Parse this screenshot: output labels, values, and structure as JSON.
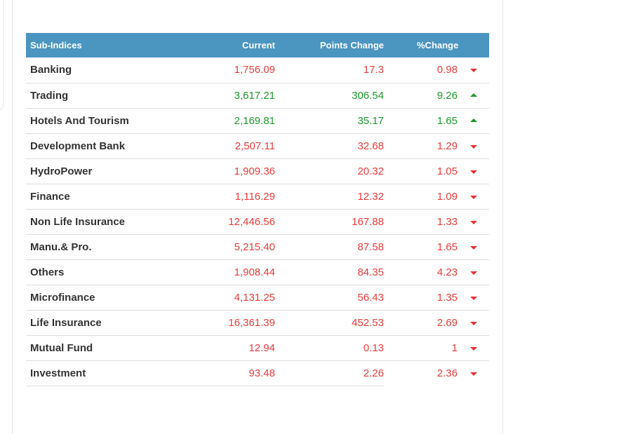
{
  "table": {
    "headers": {
      "name": "Sub-Indices",
      "current": "Current",
      "points_change": "Points Change",
      "percent_change": "%Change"
    },
    "rows": [
      {
        "name": "Banking",
        "current": "1,756.09",
        "points": "17.3",
        "pct": "0.98",
        "dir": "down"
      },
      {
        "name": "Trading",
        "current": "3,617.21",
        "points": "306.54",
        "pct": "9.26",
        "dir": "up"
      },
      {
        "name": "Hotels And Tourism",
        "current": "2,169.81",
        "points": "35.17",
        "pct": "1.65",
        "dir": "up"
      },
      {
        "name": "Development Bank",
        "current": "2,507.11",
        "points": "32.68",
        "pct": "1.29",
        "dir": "down"
      },
      {
        "name": "HydroPower",
        "current": "1,909.36",
        "points": "20.32",
        "pct": "1.05",
        "dir": "down"
      },
      {
        "name": "Finance",
        "current": "1,116.29",
        "points": "12.32",
        "pct": "1.09",
        "dir": "down"
      },
      {
        "name": "Non Life Insurance",
        "current": "12,446.56",
        "points": "167.88",
        "pct": "1.33",
        "dir": "down"
      },
      {
        "name": "Manu.& Pro.",
        "current": "5,215.40",
        "points": "87.58",
        "pct": "1.65",
        "dir": "down"
      },
      {
        "name": "Others",
        "current": "1,908.44",
        "points": "84.35",
        "pct": "4.23",
        "dir": "down"
      },
      {
        "name": "Microfinance",
        "current": "4,131.25",
        "points": "56.43",
        "pct": "1.35",
        "dir": "down"
      },
      {
        "name": "Life Insurance",
        "current": "16,361.39",
        "points": "452.53",
        "pct": "2.69",
        "dir": "down"
      },
      {
        "name": "Mutual Fund",
        "current": "12.94",
        "points": "0.13",
        "pct": "1",
        "dir": "down"
      },
      {
        "name": "Investment",
        "current": "93.48",
        "points": "2.26",
        "pct": "2.36",
        "dir": "down"
      }
    ]
  },
  "colors": {
    "header_bg": "#4b95c1",
    "negative": "#ec3b3b",
    "positive": "#1b9a2b"
  }
}
